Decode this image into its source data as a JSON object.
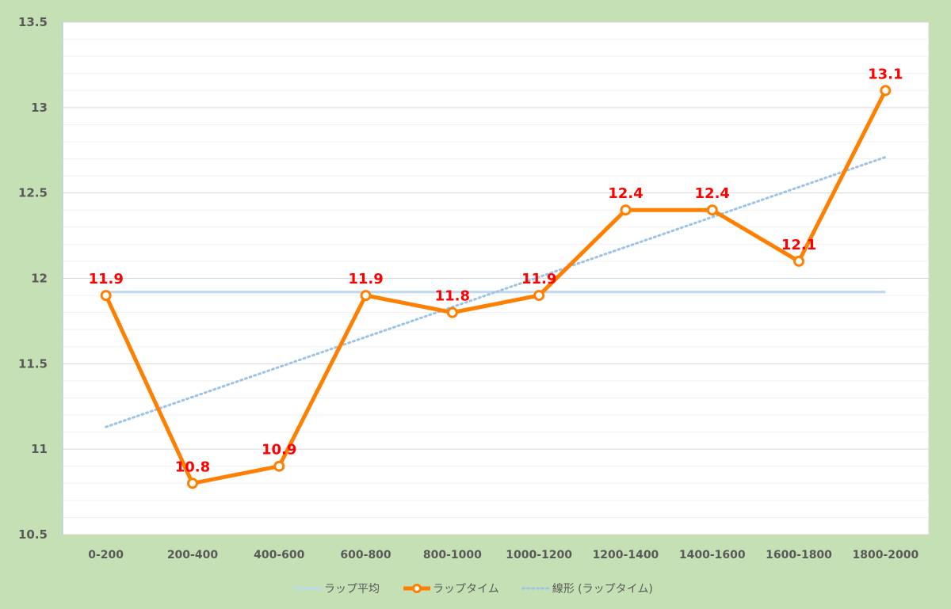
{
  "chart_data": {
    "type": "line",
    "title": "",
    "xlabel": "",
    "ylabel": "",
    "categories": [
      "0-200",
      "200-400",
      "400-600",
      "600-800",
      "800-1000",
      "1000-1200",
      "1200-1400",
      "1400-1600",
      "1600-1800",
      "1800-2000"
    ],
    "ylim": [
      10.5,
      13.5
    ],
    "yticks": [
      "13.5",
      "13",
      "12.5",
      "12",
      "11.5",
      "11",
      "10.5"
    ],
    "grid": true,
    "legend_position": "bottom",
    "series": [
      {
        "name": "ラップ平均",
        "kind": "average",
        "color": "#bdd7ee",
        "values": [
          11.92,
          11.92,
          11.92,
          11.92,
          11.92,
          11.92,
          11.92,
          11.92,
          11.92,
          11.92
        ]
      },
      {
        "name": "ラップタイム",
        "kind": "data",
        "color": "#ff8000",
        "values": [
          11.9,
          10.8,
          10.9,
          11.9,
          11.8,
          11.9,
          12.4,
          12.4,
          12.1,
          13.1
        ],
        "labels": [
          "11.9",
          "10.8",
          "10.9",
          "11.9",
          "11.8",
          "11.9",
          "12.4",
          "12.4",
          "12.1",
          "13.1"
        ],
        "label_color": "#ff0000"
      },
      {
        "name": "線形 (ラップタイム)",
        "kind": "trend",
        "color": "#9dc3e6",
        "start": 11.13,
        "end": 12.71
      }
    ]
  }
}
